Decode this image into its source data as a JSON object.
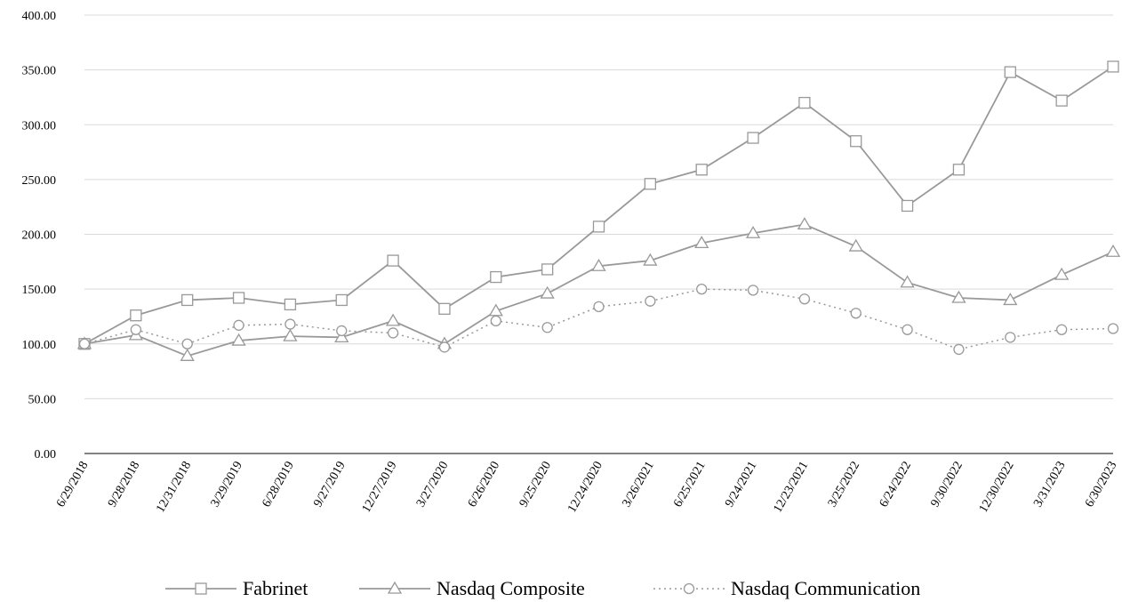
{
  "chart_data": {
    "type": "line",
    "title": "",
    "xlabel": "",
    "ylabel": "",
    "ylim": [
      0,
      400
    ],
    "y_ticks": [
      "0.00",
      "50.00",
      "100.00",
      "150.00",
      "200.00",
      "250.00",
      "300.00",
      "350.00",
      "400.00"
    ],
    "categories": [
      "6/29/2018",
      "9/28/2018",
      "12/31/2018",
      "3/29/2019",
      "6/28/2019",
      "9/27/2019",
      "12/27/2019",
      "3/27/2020",
      "6/26/2020",
      "9/25/2020",
      "12/24/2020",
      "3/26/2021",
      "6/25/2021",
      "9/24/2021",
      "12/23/2021",
      "3/25/2022",
      "6/24/2022",
      "9/30/2022",
      "12/30/2022",
      "3/31/2023",
      "6/30/2023"
    ],
    "grid": true,
    "legend_position": "bottom",
    "series": [
      {
        "name": "Fabrinet",
        "marker": "square",
        "style": "solid",
        "color": "#999999",
        "values": [
          100,
          126,
          140,
          142,
          136,
          140,
          176,
          132,
          161,
          168,
          207,
          246,
          259,
          288,
          320,
          285,
          226,
          259,
          348,
          322,
          353
        ]
      },
      {
        "name": "Nasdaq Composite",
        "marker": "triangle",
        "style": "solid",
        "color": "#999999",
        "values": [
          100,
          108,
          89,
          103,
          107,
          106,
          121,
          100,
          130,
          146,
          171,
          176,
          192,
          201,
          209,
          189,
          156,
          142,
          140,
          163,
          184
        ]
      },
      {
        "name": "Nasdaq Communication",
        "marker": "circle",
        "style": "dotted",
        "color": "#999999",
        "values": [
          100,
          113,
          100,
          117,
          118,
          112,
          110,
          97,
          121,
          115,
          134,
          139,
          150,
          149,
          141,
          128,
          113,
          95,
          106,
          113,
          114
        ]
      }
    ]
  }
}
